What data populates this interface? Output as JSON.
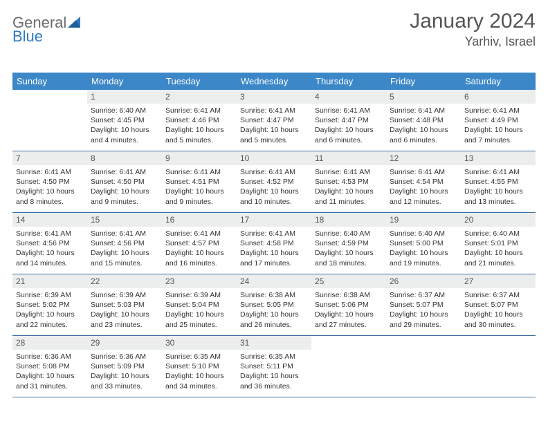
{
  "brand": {
    "part1": "General",
    "part2": "Blue"
  },
  "title": "January 2024",
  "location": "Yarhiv, Israel",
  "colors": {
    "header_bg": "#3b87c8",
    "daynum_bg": "#eceded",
    "rule": "#3b6ea0",
    "text": "#333333",
    "title": "#555555"
  },
  "dow": [
    "Sunday",
    "Monday",
    "Tuesday",
    "Wednesday",
    "Thursday",
    "Friday",
    "Saturday"
  ],
  "layout": {
    "cols": 7,
    "rows": 5,
    "cell_min_h": 88,
    "font_body": 10.5,
    "font_dow": 13
  },
  "weeks": [
    [
      {
        "n": "",
        "sunrise": "",
        "sunset": "",
        "daylight": ""
      },
      {
        "n": "1",
        "sunrise": "Sunrise: 6:40 AM",
        "sunset": "Sunset: 4:45 PM",
        "daylight": "Daylight: 10 hours and 4 minutes."
      },
      {
        "n": "2",
        "sunrise": "Sunrise: 6:41 AM",
        "sunset": "Sunset: 4:46 PM",
        "daylight": "Daylight: 10 hours and 5 minutes."
      },
      {
        "n": "3",
        "sunrise": "Sunrise: 6:41 AM",
        "sunset": "Sunset: 4:47 PM",
        "daylight": "Daylight: 10 hours and 5 minutes."
      },
      {
        "n": "4",
        "sunrise": "Sunrise: 6:41 AM",
        "sunset": "Sunset: 4:47 PM",
        "daylight": "Daylight: 10 hours and 6 minutes."
      },
      {
        "n": "5",
        "sunrise": "Sunrise: 6:41 AM",
        "sunset": "Sunset: 4:48 PM",
        "daylight": "Daylight: 10 hours and 6 minutes."
      },
      {
        "n": "6",
        "sunrise": "Sunrise: 6:41 AM",
        "sunset": "Sunset: 4:49 PM",
        "daylight": "Daylight: 10 hours and 7 minutes."
      }
    ],
    [
      {
        "n": "7",
        "sunrise": "Sunrise: 6:41 AM",
        "sunset": "Sunset: 4:50 PM",
        "daylight": "Daylight: 10 hours and 8 minutes."
      },
      {
        "n": "8",
        "sunrise": "Sunrise: 6:41 AM",
        "sunset": "Sunset: 4:50 PM",
        "daylight": "Daylight: 10 hours and 9 minutes."
      },
      {
        "n": "9",
        "sunrise": "Sunrise: 6:41 AM",
        "sunset": "Sunset: 4:51 PM",
        "daylight": "Daylight: 10 hours and 9 minutes."
      },
      {
        "n": "10",
        "sunrise": "Sunrise: 6:41 AM",
        "sunset": "Sunset: 4:52 PM",
        "daylight": "Daylight: 10 hours and 10 minutes."
      },
      {
        "n": "11",
        "sunrise": "Sunrise: 6:41 AM",
        "sunset": "Sunset: 4:53 PM",
        "daylight": "Daylight: 10 hours and 11 minutes."
      },
      {
        "n": "12",
        "sunrise": "Sunrise: 6:41 AM",
        "sunset": "Sunset: 4:54 PM",
        "daylight": "Daylight: 10 hours and 12 minutes."
      },
      {
        "n": "13",
        "sunrise": "Sunrise: 6:41 AM",
        "sunset": "Sunset: 4:55 PM",
        "daylight": "Daylight: 10 hours and 13 minutes."
      }
    ],
    [
      {
        "n": "14",
        "sunrise": "Sunrise: 6:41 AM",
        "sunset": "Sunset: 4:56 PM",
        "daylight": "Daylight: 10 hours and 14 minutes."
      },
      {
        "n": "15",
        "sunrise": "Sunrise: 6:41 AM",
        "sunset": "Sunset: 4:56 PM",
        "daylight": "Daylight: 10 hours and 15 minutes."
      },
      {
        "n": "16",
        "sunrise": "Sunrise: 6:41 AM",
        "sunset": "Sunset: 4:57 PM",
        "daylight": "Daylight: 10 hours and 16 minutes."
      },
      {
        "n": "17",
        "sunrise": "Sunrise: 6:41 AM",
        "sunset": "Sunset: 4:58 PM",
        "daylight": "Daylight: 10 hours and 17 minutes."
      },
      {
        "n": "18",
        "sunrise": "Sunrise: 6:40 AM",
        "sunset": "Sunset: 4:59 PM",
        "daylight": "Daylight: 10 hours and 18 minutes."
      },
      {
        "n": "19",
        "sunrise": "Sunrise: 6:40 AM",
        "sunset": "Sunset: 5:00 PM",
        "daylight": "Daylight: 10 hours and 19 minutes."
      },
      {
        "n": "20",
        "sunrise": "Sunrise: 6:40 AM",
        "sunset": "Sunset: 5:01 PM",
        "daylight": "Daylight: 10 hours and 21 minutes."
      }
    ],
    [
      {
        "n": "21",
        "sunrise": "Sunrise: 6:39 AM",
        "sunset": "Sunset: 5:02 PM",
        "daylight": "Daylight: 10 hours and 22 minutes."
      },
      {
        "n": "22",
        "sunrise": "Sunrise: 6:39 AM",
        "sunset": "Sunset: 5:03 PM",
        "daylight": "Daylight: 10 hours and 23 minutes."
      },
      {
        "n": "23",
        "sunrise": "Sunrise: 6:39 AM",
        "sunset": "Sunset: 5:04 PM",
        "daylight": "Daylight: 10 hours and 25 minutes."
      },
      {
        "n": "24",
        "sunrise": "Sunrise: 6:38 AM",
        "sunset": "Sunset: 5:05 PM",
        "daylight": "Daylight: 10 hours and 26 minutes."
      },
      {
        "n": "25",
        "sunrise": "Sunrise: 6:38 AM",
        "sunset": "Sunset: 5:06 PM",
        "daylight": "Daylight: 10 hours and 27 minutes."
      },
      {
        "n": "26",
        "sunrise": "Sunrise: 6:37 AM",
        "sunset": "Sunset: 5:07 PM",
        "daylight": "Daylight: 10 hours and 29 minutes."
      },
      {
        "n": "27",
        "sunrise": "Sunrise: 6:37 AM",
        "sunset": "Sunset: 5:07 PM",
        "daylight": "Daylight: 10 hours and 30 minutes."
      }
    ],
    [
      {
        "n": "28",
        "sunrise": "Sunrise: 6:36 AM",
        "sunset": "Sunset: 5:08 PM",
        "daylight": "Daylight: 10 hours and 31 minutes."
      },
      {
        "n": "29",
        "sunrise": "Sunrise: 6:36 AM",
        "sunset": "Sunset: 5:09 PM",
        "daylight": "Daylight: 10 hours and 33 minutes."
      },
      {
        "n": "30",
        "sunrise": "Sunrise: 6:35 AM",
        "sunset": "Sunset: 5:10 PM",
        "daylight": "Daylight: 10 hours and 34 minutes."
      },
      {
        "n": "31",
        "sunrise": "Sunrise: 6:35 AM",
        "sunset": "Sunset: 5:11 PM",
        "daylight": "Daylight: 10 hours and 36 minutes."
      },
      {
        "n": "",
        "sunrise": "",
        "sunset": "",
        "daylight": ""
      },
      {
        "n": "",
        "sunrise": "",
        "sunset": "",
        "daylight": ""
      },
      {
        "n": "",
        "sunrise": "",
        "sunset": "",
        "daylight": ""
      }
    ]
  ]
}
